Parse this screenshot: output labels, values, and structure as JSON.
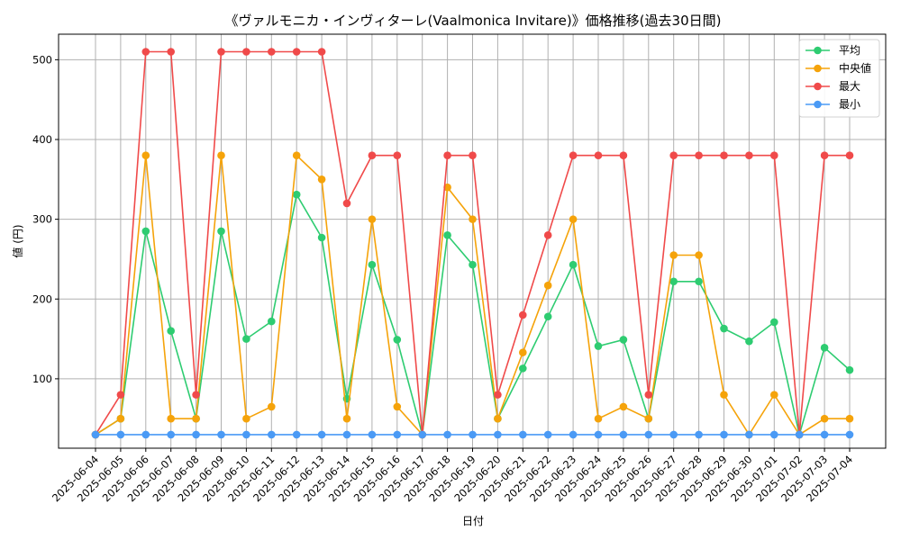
{
  "chart_data": {
    "type": "line",
    "title": "《ヴァルモニカ・インヴィターレ(Vaalmonica Invitare)》価格推移(過去30日間)",
    "xlabel": "日付",
    "ylabel": "値 (円)",
    "ylim": [
      13,
      532
    ],
    "yticks": [
      100,
      200,
      300,
      400,
      500
    ],
    "grid": true,
    "legend_position": "top-right",
    "categories": [
      "2025-06-04",
      "2025-06-05",
      "2025-06-06",
      "2025-06-07",
      "2025-06-08",
      "2025-06-09",
      "2025-06-10",
      "2025-06-11",
      "2025-06-12",
      "2025-06-13",
      "2025-06-14",
      "2025-06-15",
      "2025-06-16",
      "2025-06-17",
      "2025-06-18",
      "2025-06-19",
      "2025-06-20",
      "2025-06-21",
      "2025-06-22",
      "2025-06-23",
      "2025-06-24",
      "2025-06-25",
      "2025-06-26",
      "2025-06-27",
      "2025-06-28",
      "2025-06-29",
      "2025-06-30",
      "2025-07-01",
      "2025-07-02",
      "2025-07-03",
      "2025-07-04"
    ],
    "series": [
      {
        "name": "平均",
        "color": "#2ecc71",
        "values": [
          30,
          50,
          285,
          160,
          50,
          285,
          150,
          172,
          331,
          277,
          75,
          243,
          149,
          30,
          280,
          243,
          50,
          113,
          178,
          243,
          141,
          149,
          50,
          222,
          222,
          163,
          147,
          171,
          30,
          139,
          111
        ]
      },
      {
        "name": "中央値",
        "color": "#f5a30a",
        "values": [
          30,
          50,
          380,
          50,
          50,
          380,
          50,
          65,
          380,
          350,
          50,
          300,
          65,
          30,
          340,
          300,
          50,
          133,
          217,
          300,
          50,
          65,
          50,
          255,
          255,
          80,
          30,
          80,
          30,
          50,
          50
        ]
      },
      {
        "name": "最大",
        "color": "#f04a4a",
        "values": [
          30,
          80,
          510,
          510,
          80,
          510,
          510,
          510,
          510,
          510,
          320,
          380,
          380,
          30,
          380,
          380,
          80,
          180,
          280,
          380,
          380,
          380,
          80,
          380,
          380,
          380,
          380,
          380,
          30,
          380,
          380
        ]
      },
      {
        "name": "最小",
        "color": "#4a9af5",
        "values": [
          30,
          30,
          30,
          30,
          30,
          30,
          30,
          30,
          30,
          30,
          30,
          30,
          30,
          30,
          30,
          30,
          30,
          30,
          30,
          30,
          30,
          30,
          30,
          30,
          30,
          30,
          30,
          30,
          30,
          30,
          30
        ]
      }
    ]
  }
}
